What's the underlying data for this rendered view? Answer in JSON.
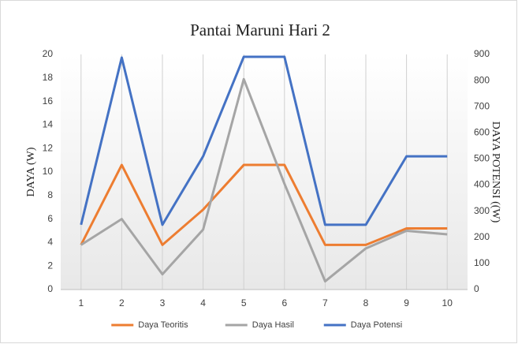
{
  "chart_data": {
    "type": "line",
    "title": "Pantai Maruni Hari 2",
    "y_label": "DAYA (W)",
    "y2_label": "DAYA POTENSI ((W)",
    "categories": [
      "1",
      "2",
      "3",
      "4",
      "5",
      "6",
      "7",
      "8",
      "9",
      "10"
    ],
    "series": [
      {
        "name": "Daya Teoritis",
        "color": "#ed7d31",
        "values": [
          3.8,
          10.6,
          3.8,
          6.8,
          10.6,
          10.6,
          3.8,
          3.8,
          5.2,
          5.2
        ]
      },
      {
        "name": "Daya Hasil",
        "color": "#a5a5a5",
        "values": [
          3.8,
          6.0,
          1.3,
          5.1,
          17.9,
          9.0,
          0.7,
          3.5,
          5.0,
          4.7
        ]
      },
      {
        "name": "Daya Potensi",
        "color": "#4472c4",
        "axis": "y2",
        "values": [
          248,
          888,
          248,
          510,
          891,
          891,
          248,
          248,
          510,
          510
        ]
      }
    ],
    "ylim": [
      0,
      20
    ],
    "yticks": [
      0,
      2,
      4,
      6,
      8,
      10,
      12,
      14,
      16,
      18,
      20
    ],
    "y2lim": [
      0,
      900
    ],
    "y2ticks": [
      0,
      100,
      200,
      300,
      400,
      500,
      600,
      700,
      800,
      900
    ],
    "grid": true,
    "legend": "bottom"
  }
}
